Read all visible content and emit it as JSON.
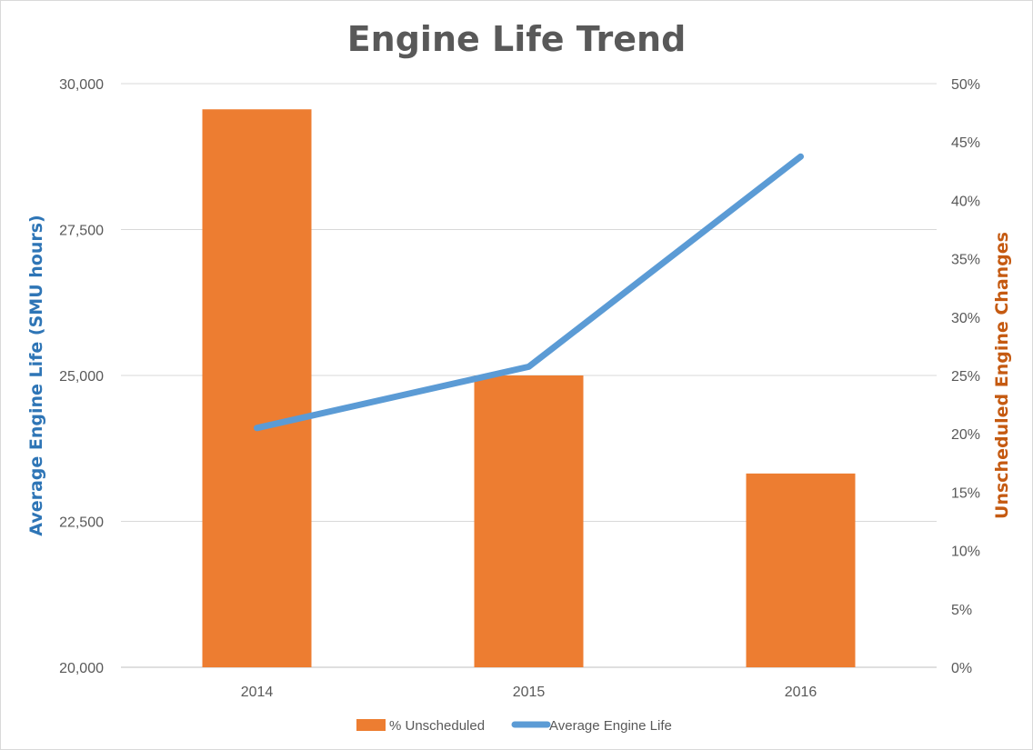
{
  "chart_data": {
    "type": "bar",
    "title": "Engine Life Trend",
    "categories": [
      "2014",
      "2015",
      "2016"
    ],
    "y_left": {
      "label": "Average Engine Life (SMU hours)",
      "ticks": [
        "30,000",
        "27,500",
        "25,000",
        "22,500",
        "20,000"
      ],
      "tick_values": [
        30000,
        27500,
        25000,
        22500,
        20000
      ],
      "ylim": [
        20000,
        30000
      ],
      "color": "#2e75b6"
    },
    "y_right": {
      "label": "Unscheduled Engine Changes",
      "ticks": [
        "50%",
        "45%",
        "40%",
        "35%",
        "30%",
        "25%",
        "20%",
        "15%",
        "10%",
        "5%",
        "0%"
      ],
      "tick_values": [
        50,
        45,
        40,
        35,
        30,
        25,
        20,
        15,
        10,
        5,
        0
      ],
      "ylim": [
        0,
        50
      ],
      "color": "#c55a11"
    },
    "series": [
      {
        "name": "% Unscheduled",
        "type": "bar",
        "axis": "right",
        "unit": "%",
        "values": [
          47.8,
          25.0,
          16.6
        ],
        "color": "#ed7d31"
      },
      {
        "name": "Average Engine Life",
        "type": "line",
        "axis": "left",
        "values": [
          24100,
          25150,
          28750
        ],
        "color": "#5b9bd5"
      }
    ],
    "grid": true,
    "legend": "bottom"
  }
}
